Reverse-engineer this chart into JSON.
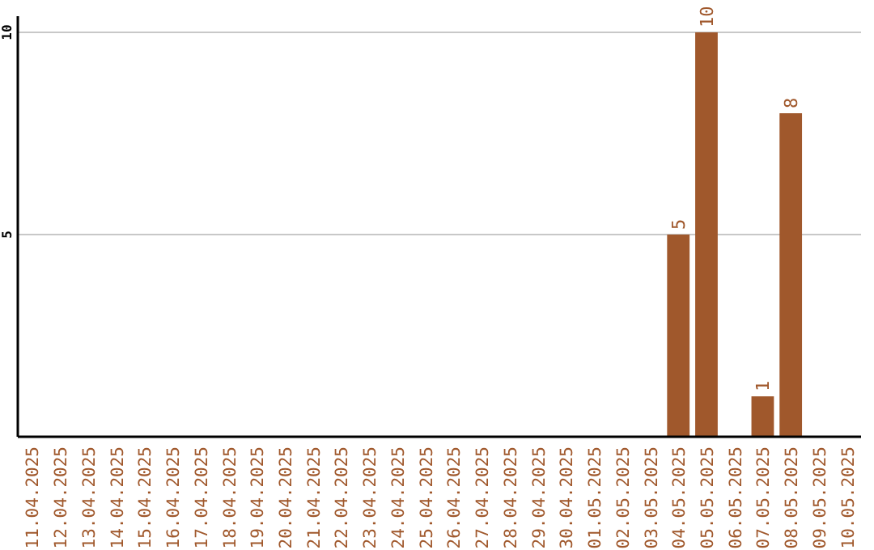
{
  "chart_data": {
    "type": "bar",
    "categories": [
      "11.04.2025",
      "12.04.2025",
      "13.04.2025",
      "14.04.2025",
      "15.04.2025",
      "16.04.2025",
      "17.04.2025",
      "18.04.2025",
      "19.04.2025",
      "20.04.2025",
      "21.04.2025",
      "22.04.2025",
      "23.04.2025",
      "24.04.2025",
      "25.04.2025",
      "26.04.2025",
      "27.04.2025",
      "28.04.2025",
      "29.04.2025",
      "30.04.2025",
      "01.05.2025",
      "02.05.2025",
      "03.05.2025",
      "04.05.2025",
      "05.05.2025",
      "06.05.2025",
      "07.05.2025",
      "08.05.2025",
      "09.05.2025",
      "10.05.2025"
    ],
    "values": [
      0,
      0,
      0,
      0,
      0,
      0,
      0,
      0,
      0,
      0,
      0,
      0,
      0,
      0,
      0,
      0,
      0,
      0,
      0,
      0,
      0,
      0,
      0,
      5,
      10,
      0,
      1,
      8,
      0,
      0
    ],
    "value_labels": [
      null,
      null,
      null,
      null,
      null,
      null,
      null,
      null,
      null,
      null,
      null,
      null,
      null,
      null,
      null,
      null,
      null,
      null,
      null,
      null,
      null,
      null,
      null,
      "5",
      "10",
      null,
      "1",
      "8",
      null,
      null
    ],
    "color": "#a0582c",
    "ylim": [
      0,
      10.4
    ],
    "yticks": [
      5,
      10
    ],
    "grid": "y"
  }
}
